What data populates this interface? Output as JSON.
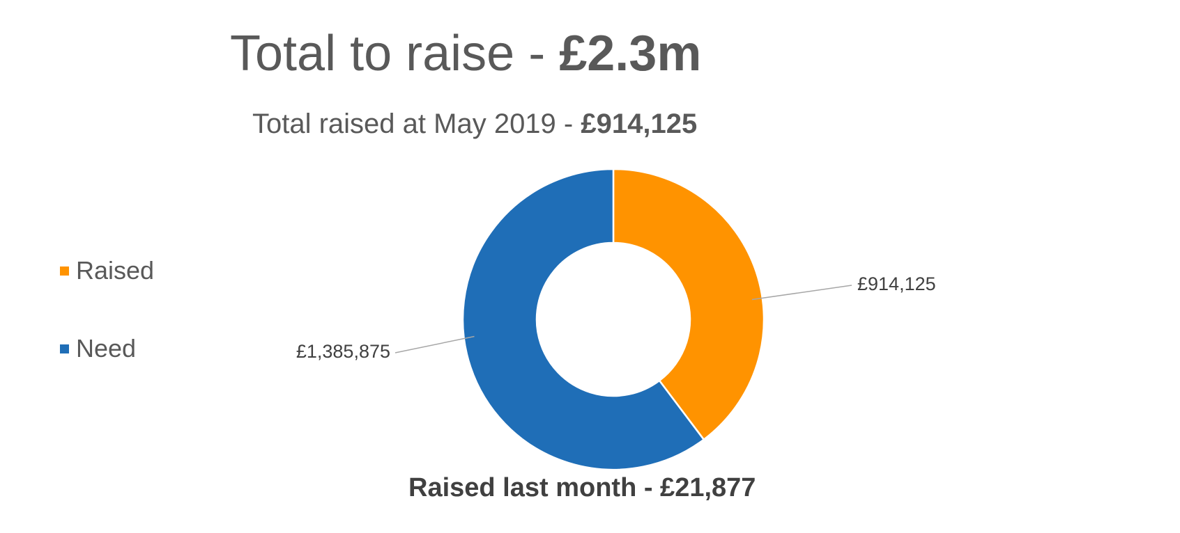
{
  "title": {
    "prefix": "Total to raise - ",
    "amount": "£2.3m"
  },
  "subtitle": {
    "prefix": "Total raised at May 2019 - ",
    "amount": "£914,125"
  },
  "footer": {
    "text": "Raised last month - £21,877"
  },
  "legend": {
    "placement": "left",
    "items": [
      {
        "label": "Raised",
        "color": "#FF9300"
      },
      {
        "label": "Need",
        "color": "#1F6EB7"
      }
    ]
  },
  "chart_data": {
    "type": "pie",
    "variant": "doughnut",
    "categories": [
      "Raised",
      "Need"
    ],
    "values": [
      914125,
      1385875
    ],
    "data_labels": [
      "£914,125",
      "£1,385,875"
    ],
    "colors": [
      "#FF9300",
      "#1F6EB7"
    ],
    "title": "Total to raise - £2.3m",
    "subtitle": "Total raised at May 2019 - £914,125",
    "legend": "left"
  }
}
